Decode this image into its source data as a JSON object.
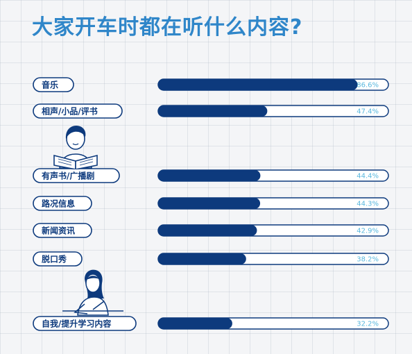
{
  "title": "大家开车时都在听什么内容?",
  "colors": {
    "title": "#2f86c9",
    "bar_fill": "#0d3a7d",
    "bar_track": "#ffffff",
    "outline": "#0d3a7d",
    "value_text": "#5ab8de",
    "grid": "#c9d0da",
    "background": "#f4f5f7"
  },
  "icons": {
    "reader": "person-reading-book-icon",
    "writer": "person-writing-icon"
  },
  "chart_data": {
    "type": "bar",
    "orientation": "horizontal",
    "categories": [
      "音乐",
      "相声/小品/评书",
      "有声书/广播剧",
      "路况信息",
      "新闻资讯",
      "脱口秀",
      "自我/提升学习内容"
    ],
    "values": [
      86.6,
      47.4,
      44.4,
      44.3,
      42.9,
      38.2,
      32.2
    ],
    "value_labels": [
      "86.6%",
      "47.4%",
      "44.4%",
      "44.3%",
      "42.9%",
      "38.2%",
      "32.2%"
    ],
    "unit": "%",
    "xlim": [
      0,
      100
    ],
    "grid": true
  }
}
